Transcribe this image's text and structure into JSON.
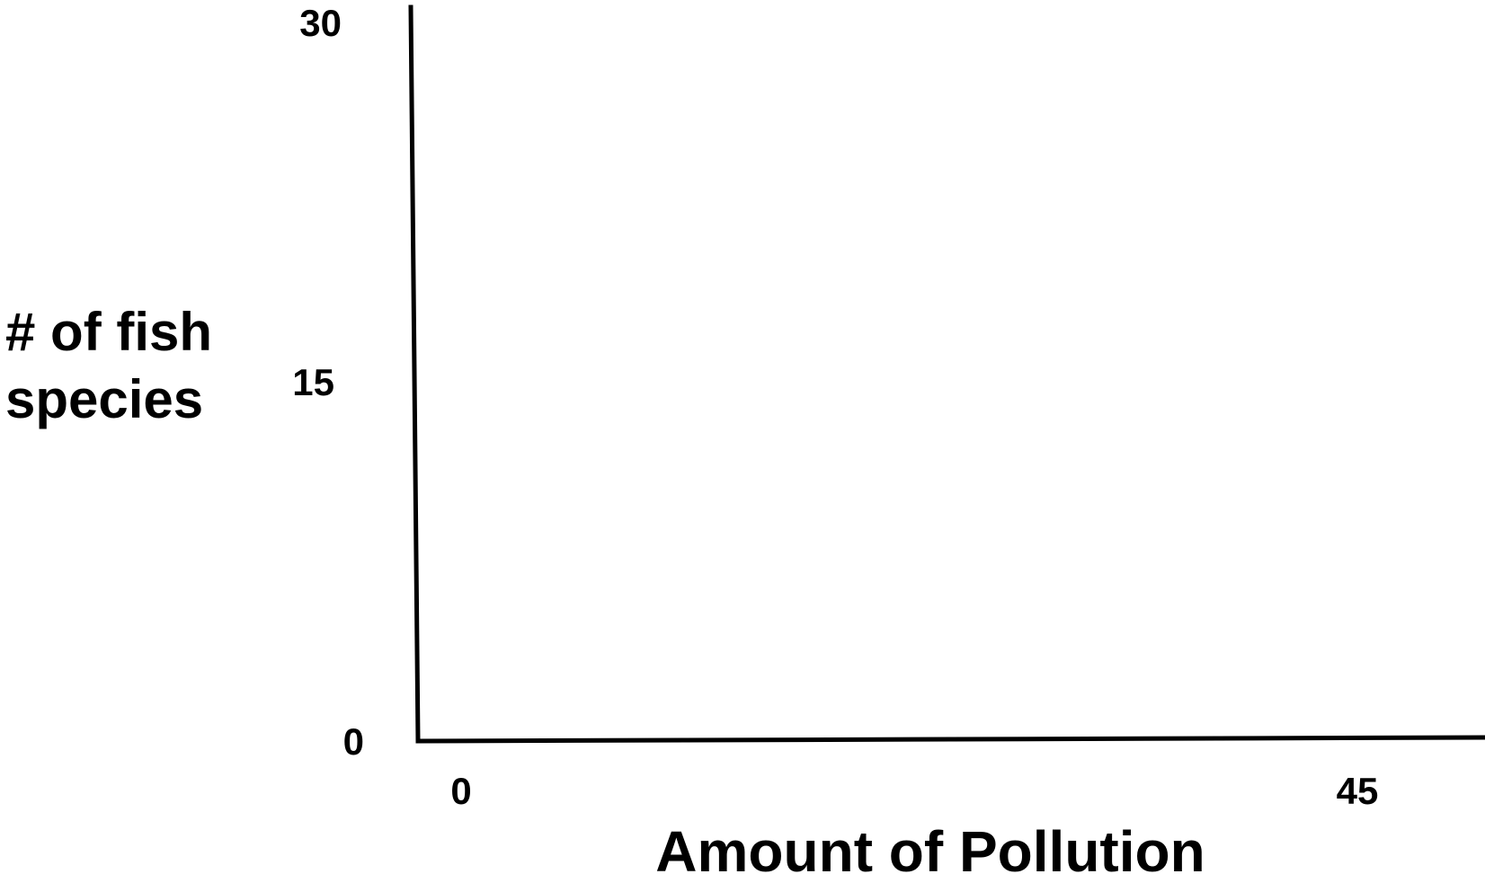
{
  "chart_data": {
    "type": "line",
    "title": "",
    "xlabel": "Amount of Pollution",
    "ylabel_lines": [
      "# of fish",
      "species"
    ],
    "xlim": [
      0,
      45
    ],
    "ylim": [
      0,
      30
    ],
    "x_ticks": [
      {
        "value": 0,
        "label": "0"
      },
      {
        "value": 45,
        "label": "45"
      }
    ],
    "y_ticks": [
      {
        "value": 0,
        "label": "0"
      },
      {
        "value": 15,
        "label": "15"
      },
      {
        "value": 30,
        "label": "30"
      }
    ],
    "series": [],
    "grid": false,
    "colors": {
      "axis": "#000000",
      "text": "#000000",
      "background": "#ffffff"
    }
  }
}
